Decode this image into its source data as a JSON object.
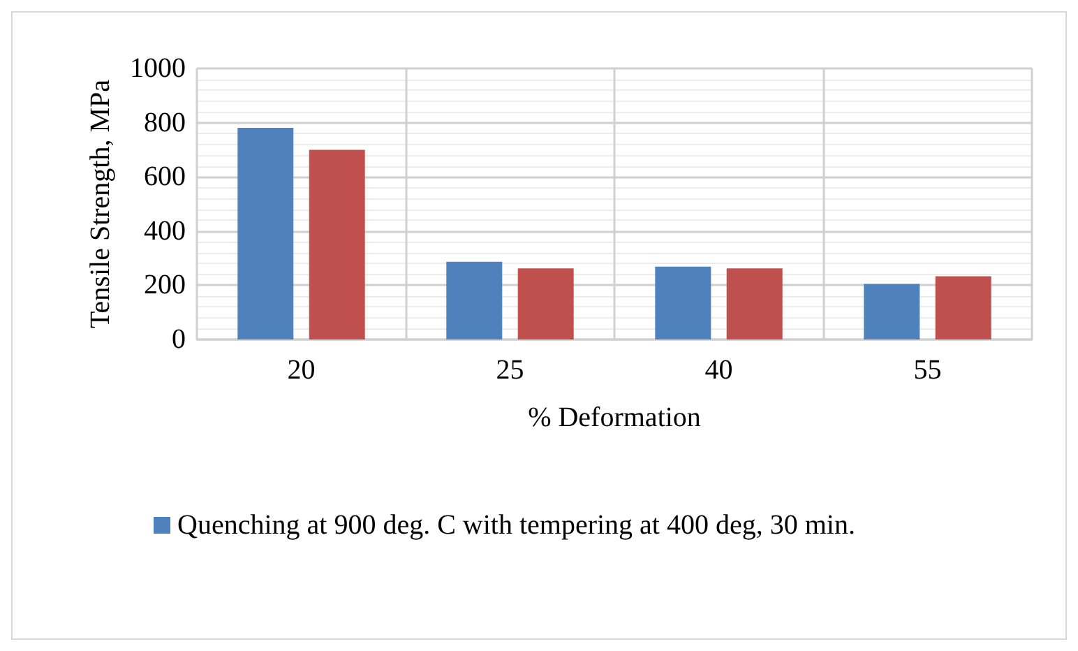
{
  "chart_data": {
    "type": "bar",
    "xlabel": "% Deformation",
    "ylabel": "Tensile Strength, MPa",
    "categories": [
      "20",
      "25",
      "40",
      "55"
    ],
    "series": [
      {
        "name": "Quenching at 900 deg. C with tempering at 400 deg, 30 min.",
        "color": "#4f81bd",
        "values": [
          781,
          287,
          269,
          205
        ]
      },
      {
        "color": "#c0504d",
        "values": [
          700,
          262,
          262,
          233
        ]
      }
    ],
    "ylim": [
      0,
      1000
    ],
    "yticks": [
      0,
      200,
      400,
      600,
      800,
      1000
    ],
    "grid": true,
    "legend": "bottom"
  }
}
